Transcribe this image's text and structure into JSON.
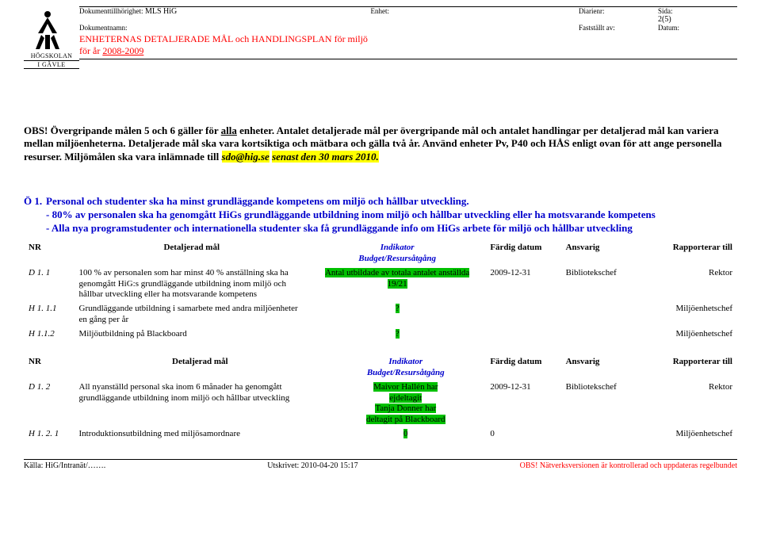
{
  "header": {
    "logo_text_top": "HÖGSKOLAN",
    "logo_text_bottom": "I GÄVLE",
    "doc_owner_label": "Dokumenttillhörighet:",
    "doc_owner_value": "MLS HiG",
    "enhet_label": "Enhet:",
    "diarienr_label": "Diarienr:",
    "sida_label": "Sida:",
    "sida_value": "2(5)",
    "docname_label": "Dokumentnamn:",
    "faststallt_label": "Fastställt av:",
    "datum_label": "Datum:",
    "title_prefix": "ENHETERNAS DETALJERADE MÅL och HANDLINGSPLAN för miljö för år ",
    "title_year": "2008-2009"
  },
  "obs": {
    "p1a": "OBS! Övergripande målen 5 och 6 gäller för ",
    "p1u": "alla",
    "p1b": " enheter. Antalet detaljerade mål per övergripande mål och antalet handlingar per detaljerad mål kan variera mellan miljöenheterna. Detaljerade mål ska vara kortsiktiga och mätbara och gälla två år. Använd enheter Pv, P40 och HÅS enligt ovan för att ange personella resurser. Miljömålen ska vara inlämnade till ",
    "p1hl1": "sdo@hig.se",
    "p1mid": " ",
    "p1hl2": "senast den 30 mars 2010."
  },
  "sectionA": {
    "num": "Ö 1.",
    "line1": "Personal och studenter ska ha minst grundläggande kompetens om miljö och hållbar utveckling.",
    "line2": "- 80% av personalen ska ha genomgått HiGs grundläggande utbildning inom miljö och hållbar utveckling eller ha motsvarande kompetens",
    "line3": "- Alla nya programstudenter och internationella studenter ska få grundläggande info om HiGs arbete för miljö och hållbar utveckling"
  },
  "cols": {
    "nr": "NR",
    "detaljerad": "Detaljerad mål",
    "indikator": "Indikator",
    "budget": "Budget/Resursåtgång",
    "fardig": "Färdig datum",
    "ansvarig": "Ansvarig",
    "rapporterar": "Rapporterar till"
  },
  "tableA": [
    {
      "nr": "D 1. 1",
      "mal": "100 % av personalen som har minst 40 % anställning ska ha genomgått HiG:s grundläggande utbildning inom miljö och hållbar utveckling eller ha motsvarande kompetens",
      "ind1": "Antal utbildade av totala antalet anställda",
      "ind2": "19/21",
      "fardig": "2009-12-31",
      "ansvarig": "Bibliotekschef",
      "rapp": "Rektor"
    },
    {
      "nr": "H 1. 1.1",
      "mal": "Grundläggande utbildning i samarbete med andra miljöenheter en gång per år",
      "ind1": "?",
      "ind2": "",
      "fardig": "",
      "ansvarig": "",
      "rapp": "Miljöenhetschef"
    },
    {
      "nr": "H 1.1.2",
      "mal": "Miljöutbildning på Blackboard",
      "ind1": "?",
      "ind2": "",
      "fardig": "",
      "ansvarig": "",
      "rapp": "Miljöenhetschef"
    }
  ],
  "tableB": [
    {
      "nr": "D 1. 2",
      "mal": "All nyanställd personal ska inom 6 månader ha genomgått grundläggande utbildning inom miljö och hållbar utveckling",
      "ind_lines": [
        "Maivor Hallén har",
        "ejdeltagit",
        "Tanja Donner har",
        "deltagit på Blackboard"
      ],
      "fardig": "2009-12-31",
      "ansvarig": "Bibliotekschef",
      "rapp": "Rektor"
    },
    {
      "nr": "H 1. 2. 1",
      "mal": "Introduktionsutbildning med miljösamordnare",
      "ind_lines": [
        "0"
      ],
      "fardig": "0",
      "ansvarig": "",
      "rapp": "Miljöenhetschef"
    }
  ],
  "footer": {
    "left": "Källa: HiG/Intranät/…….",
    "mid": "Utskrivet: 2010-04-20 15:17",
    "right": "OBS! Nätverksversionen är kontrollerad och uppdateras regelbundet"
  },
  "colors": {
    "red": "#ff0000",
    "blue": "#0000cc",
    "green": "#00c000",
    "yellow": "#ffff00"
  }
}
